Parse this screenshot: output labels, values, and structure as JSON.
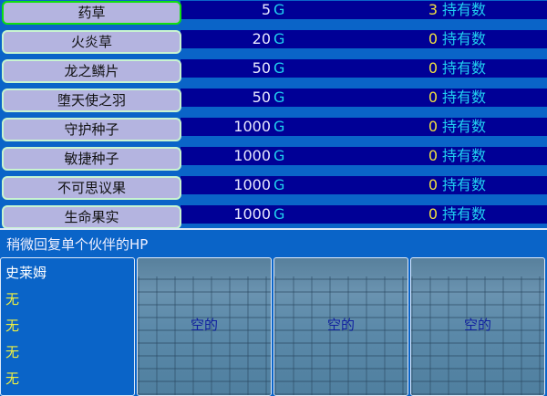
{
  "items": [
    {
      "name": "药草",
      "price": "5",
      "count": "3",
      "selected": true
    },
    {
      "name": "火炎草",
      "price": "20",
      "count": "0"
    },
    {
      "name": "龙之鳞片",
      "price": "50",
      "count": "0"
    },
    {
      "name": "堕天使之羽",
      "price": "50",
      "count": "0"
    },
    {
      "name": "守护种子",
      "price": "1000",
      "count": "0"
    },
    {
      "name": "敏捷种子",
      "price": "1000",
      "count": "0"
    },
    {
      "name": "不可思议果",
      "price": "1000",
      "count": "0"
    },
    {
      "name": "生命果实",
      "price": "1000",
      "count": "0"
    }
  ],
  "currency": "G",
  "owned_label": "持有数",
  "description": "稍微回复单个伙伴的HP",
  "status": {
    "name": "史莱姆",
    "equipment": [
      "无",
      "无",
      "无",
      "无"
    ]
  },
  "slots": [
    "空的",
    "空的",
    "空的"
  ],
  "colors": {
    "background": "#0a64c8",
    "band": "#000096",
    "selected_border": "#10e010",
    "price_unit": "#20d0f0",
    "count": "#f0e040"
  }
}
